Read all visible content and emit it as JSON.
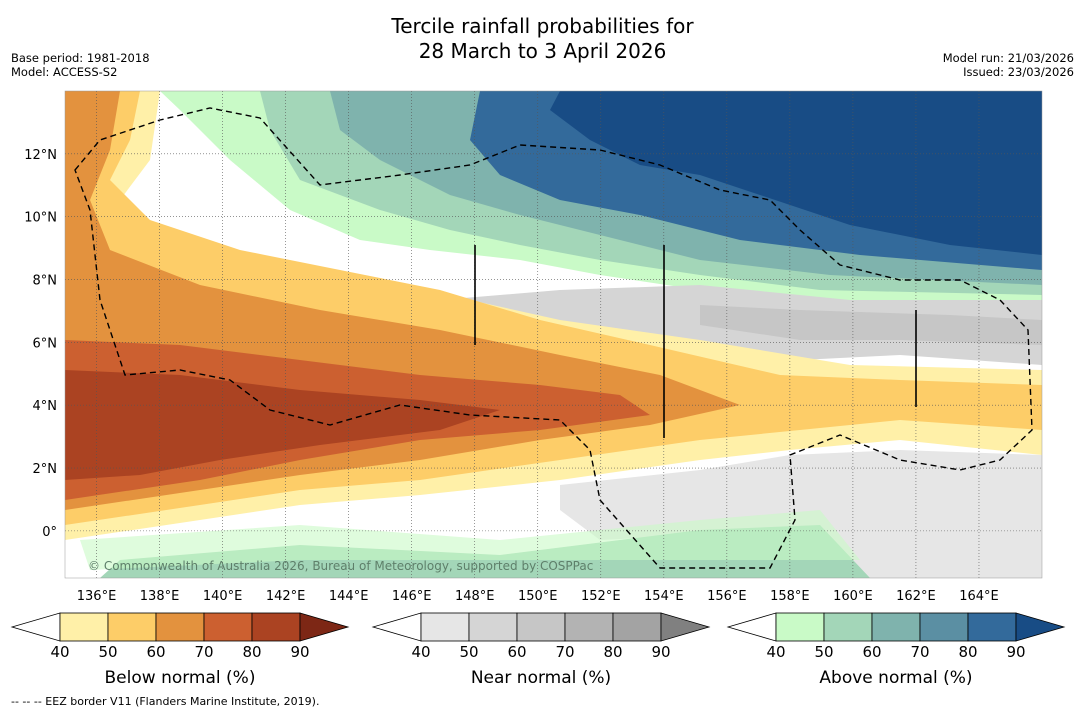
{
  "title": {
    "line1": "Tercile rainfall probabilities for",
    "line2": "28 March to 3 April 2026"
  },
  "meta": {
    "base_period": "Base period: 1981-2018",
    "model": "Model: ACCESS-S2",
    "model_run": "Model run: 21/03/2026",
    "issued": "Issued: 23/03/2026"
  },
  "map": {
    "lat_labels": [
      "12°N",
      "10°N",
      "8°N",
      "6°N",
      "4°N",
      "2°N",
      "0°"
    ],
    "lat_values": [
      12,
      10,
      8,
      6,
      4,
      2,
      0
    ],
    "lon_labels": [
      "136°E",
      "138°E",
      "140°E",
      "142°E",
      "144°E",
      "146°E",
      "148°E",
      "150°E",
      "152°E",
      "154°E",
      "156°E",
      "158°E",
      "160°E",
      "162°E",
      "164°E"
    ],
    "lon_values": [
      136,
      138,
      140,
      142,
      144,
      146,
      148,
      150,
      152,
      154,
      156,
      158,
      160,
      162,
      164
    ],
    "lon_range": [
      135,
      166
    ],
    "lat_range": [
      -1.5,
      14
    ],
    "copyright": "© Commonwealth of Australia 2026, Bureau of Meteorology, supported by COSPPac"
  },
  "colorbars": [
    {
      "label": "Below normal (%)",
      "ticks": [
        "40",
        "50",
        "60",
        "70",
        "80",
        "90"
      ],
      "colors": [
        "#ffffff",
        "#fff0a8",
        "#fdcd68",
        "#e3923e",
        "#cc6030",
        "#ab4322",
        "#7d2715"
      ]
    },
    {
      "label": "Near normal (%)",
      "ticks": [
        "40",
        "50",
        "60",
        "70",
        "80",
        "90"
      ],
      "colors": [
        "#ffffff",
        "#e6e6e6",
        "#d5d5d5",
        "#c6c6c6",
        "#b3b3b3",
        "#a3a3a3",
        "#808080"
      ]
    },
    {
      "label": "Above normal (%)",
      "ticks": [
        "40",
        "50",
        "60",
        "70",
        "80",
        "90"
      ],
      "colors": [
        "#ffffff",
        "#c9fac7",
        "#a3d6b8",
        "#7fb3ad",
        "#5b8fa3",
        "#336a9b",
        "#184c85"
      ]
    }
  ],
  "footer": "--  --  -- EEZ border V11 (Flanders Marine Institute, 2019)."
}
